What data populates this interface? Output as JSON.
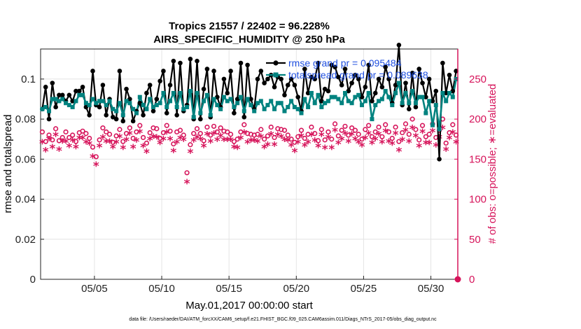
{
  "title_line1": "Tropics 21557 / 22402 = 96.228%",
  "title_line2": "AIRS_SPECIFIC_HUMIDITY @ 250 hPa",
  "footer": "data file: /Users/raeder/DAI/ATM_forcXX/CAM6_setup/f.e21.FHIST_BGC.f09_025.CAM6assim.011/Diags_NTrS_2017-05/obs_diag_output.nc",
  "colors": {
    "rmse": "#000000",
    "spread": "#00827f",
    "obs": "#d6135a",
    "legend_text": "#1f4fe0"
  },
  "chart_data": {
    "type": "line",
    "xlabel": "May.01,2017 00:00:00 start",
    "ylabel": "rmse and totalspread",
    "y2label": "# of obs: o=possible; ∗=evaluated",
    "x_range": [
      1,
      32
    ],
    "ylim": [
      0,
      0.115
    ],
    "y2lim": [
      0,
      287.5
    ],
    "x_ticks": [
      5,
      10,
      15,
      20,
      25,
      30
    ],
    "x_tick_labels": [
      "05/05",
      "05/10",
      "05/15",
      "05/20",
      "05/25",
      "05/30"
    ],
    "y_ticks": [
      0,
      0.02,
      0.04,
      0.06,
      0.08,
      0.1
    ],
    "y_tick_labels": [
      "0",
      "0.02",
      "0.04",
      "0.06",
      "0.08",
      "0.1"
    ],
    "y2_ticks": [
      0,
      50,
      100,
      150,
      200,
      250
    ],
    "y2_tick_labels": [
      "0",
      "50",
      "100",
      "150",
      "200",
      "250"
    ],
    "grid": true,
    "legend": [
      {
        "name": "rmse grand pr = 0.095484",
        "series": "rmse"
      },
      {
        "name": "totalspread grand pr = 0.089638",
        "series": "totalspread"
      }
    ],
    "legend_position": "top-right",
    "n_samples": 124,
    "start_day": 1.125,
    "step_days": 0.25,
    "series": [
      {
        "name": "rmse",
        "axis": "left",
        "values": [
          0.085,
          0.096,
          0.08,
          0.098,
          0.086,
          0.092,
          0.092,
          0.089,
          0.092,
          0.089,
          0.094,
          0.094,
          0.096,
          0.086,
          0.082,
          0.104,
          0.087,
          0.086,
          0.097,
          0.082,
          0.09,
          0.081,
          0.08,
          0.104,
          0.079,
          0.095,
          0.09,
          0.079,
          0.084,
          0.088,
          0.082,
          0.093,
          0.097,
          0.084,
          0.09,
          0.099,
          0.104,
          0.083,
          0.097,
          0.109,
          0.082,
          0.108,
          0.084,
          0.087,
          0.11,
          0.08,
          0.109,
          0.08,
          0.095,
          0.105,
          0.081,
          0.104,
          0.091,
          0.086,
          0.1,
          0.093,
          0.104,
          0.083,
          0.09,
          0.108,
          0.081,
          0.107,
          0.09,
          0.085,
          0.1,
          0.104,
          0.098,
          0.1,
          0.102,
          0.096,
          0.101,
          0.1,
          0.092,
          0.097,
          0.1,
          0.097,
          0.091,
          0.084,
          0.105,
          0.093,
          0.101,
          0.1,
          0.108,
          0.089,
          0.095,
          0.094,
          0.107,
          0.106,
          0.101,
          0.097,
          0.105,
          0.094,
          0.098,
          0.102,
          0.1,
          0.091,
          0.096,
          0.107,
          0.089,
          0.093,
          0.1,
          0.096,
          0.106,
          0.1,
          0.088,
          0.097,
          0.117,
          0.087,
          0.098,
          0.085,
          0.103,
          0.086,
          0.105,
          0.098,
          0.091,
          0.1,
          0.089,
          0.094,
          0.06,
          0.108,
          0.093,
          0.102,
          0.094,
          0.104
        ]
      },
      {
        "name": "totalspread",
        "axis": "left",
        "values": [
          0.085,
          0.086,
          0.084,
          0.09,
          0.09,
          0.089,
          0.09,
          0.088,
          0.087,
          0.086,
          0.089,
          0.092,
          0.092,
          0.088,
          0.087,
          0.09,
          0.088,
          0.089,
          0.089,
          0.087,
          0.089,
          0.085,
          0.084,
          0.088,
          0.082,
          0.089,
          0.088,
          0.085,
          0.083,
          0.091,
          0.087,
          0.085,
          0.09,
          0.086,
          0.087,
          0.088,
          0.093,
          0.086,
          0.089,
          0.093,
          0.086,
          0.093,
          0.085,
          0.086,
          0.094,
          0.081,
          0.093,
          0.083,
          0.089,
          0.092,
          0.082,
          0.09,
          0.087,
          0.085,
          0.091,
          0.089,
          0.09,
          0.086,
          0.088,
          0.091,
          0.084,
          0.09,
          0.087,
          0.084,
          0.088,
          0.089,
          0.085,
          0.087,
          0.089,
          0.085,
          0.088,
          0.088,
          0.084,
          0.086,
          0.089,
          0.086,
          0.085,
          0.083,
          0.09,
          0.086,
          0.093,
          0.088,
          0.092,
          0.086,
          0.088,
          0.089,
          0.091,
          0.091,
          0.09,
          0.088,
          0.093,
          0.089,
          0.088,
          0.091,
          0.092,
          0.087,
          0.089,
          0.093,
          0.08,
          0.087,
          0.089,
          0.09,
          0.094,
          0.091,
          0.087,
          0.093,
          0.098,
          0.088,
          0.093,
          0.088,
          0.094,
          0.088,
          0.091,
          0.091,
          0.083,
          0.089,
          0.077,
          0.087,
          0.075,
          0.093,
          0.089,
          0.093,
          0.091,
          0.1
        ]
      },
      {
        "name": "# of obs possible",
        "axis": "right",
        "marker": "o",
        "values": [
          184,
          172,
          180,
          174,
          188,
          173,
          177,
          184,
          177,
          180,
          172,
          183,
          185,
          182,
          176,
          165,
          153,
          174,
          189,
          184,
          181,
          171,
          179,
          187,
          172,
          182,
          189,
          176,
          184,
          192,
          177,
          170,
          183,
          189,
          188,
          176,
          183,
          192,
          185,
          169,
          184,
          186,
          180,
          133,
          168,
          182,
          188,
          182,
          173,
          190,
          180,
          191,
          184,
          189,
          185,
          184,
          181,
          172,
          175,
          184,
          193,
          182,
          181,
          180,
          181,
          187,
          175,
          179,
          190,
          177,
          188,
          187,
          186,
          180,
          175,
          171,
          178,
          186,
          176,
          181,
          190,
          182,
          173,
          187,
          174,
          184,
          175,
          194,
          179,
          186,
          191,
          180,
          189,
          186,
          181,
          175,
          187,
          192,
          178,
          184,
          190,
          178,
          193,
          184,
          176,
          190,
          172,
          183,
          194,
          181,
          200,
          187,
          174,
          192,
          178,
          181,
          194,
          177,
          186,
          200,
          170,
          183,
          193,
          180
        ]
      },
      {
        "name": "# of obs evaluated",
        "axis": "right",
        "marker": "*",
        "values": [
          170,
          160,
          174,
          164,
          179,
          161,
          171,
          171,
          165,
          172,
          164,
          175,
          175,
          170,
          168,
          152,
          142,
          165,
          176,
          171,
          171,
          164,
          170,
          177,
          163,
          173,
          181,
          164,
          172,
          183,
          165,
          158,
          174,
          177,
          176,
          169,
          174,
          182,
          174,
          159,
          170,
          175,
          173,
          120,
          158,
          172,
          176,
          174,
          165,
          180,
          171,
          181,
          173,
          178,
          173,
          173,
          173,
          164,
          163,
          175,
          182,
          170,
          172,
          172,
          171,
          177,
          164,
          167,
          180,
          167,
          179,
          177,
          173,
          172,
          166,
          159,
          170,
          178,
          166,
          170,
          179,
          172,
          165,
          179,
          163,
          176,
          163,
          185,
          169,
          174,
          181,
          171,
          180,
          174,
          170,
          166,
          175,
          181,
          169,
          174,
          180,
          170,
          184,
          171,
          168,
          181,
          160,
          173,
          185,
          171,
          188,
          178,
          165,
          183,
          169,
          169,
          184,
          166,
          176,
          188,
          161,
          175,
          182,
          170
        ]
      }
    ]
  }
}
